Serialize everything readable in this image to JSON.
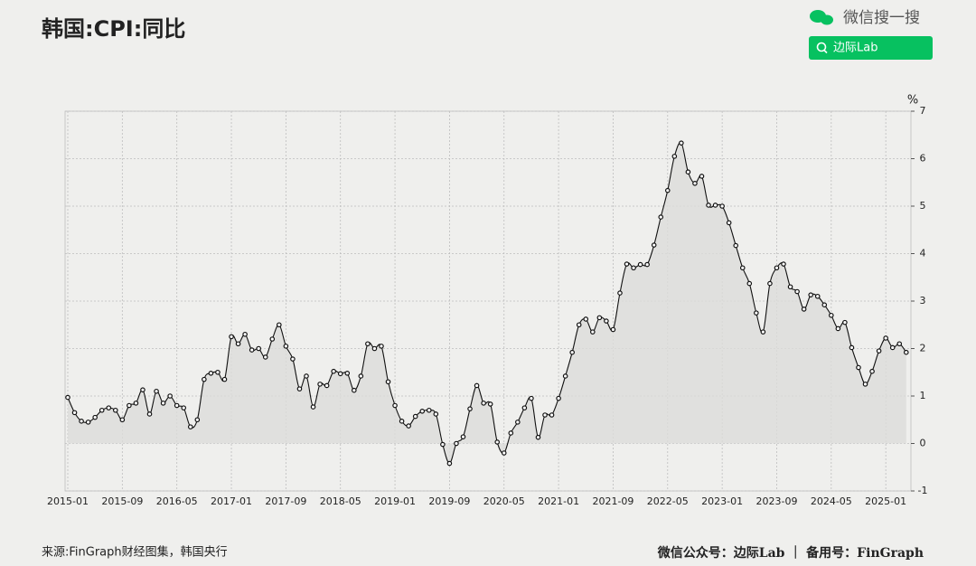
{
  "chart_data": {
    "type": "line",
    "title": "韩国:CPI:同比",
    "categories": [
      "2015-01",
      null,
      null,
      null,
      null,
      null,
      null,
      null,
      "2015-09",
      null,
      null,
      null,
      null,
      null,
      null,
      null,
      "2016-05",
      null,
      null,
      null,
      null,
      null,
      null,
      null,
      "2017-01",
      null,
      null,
      null,
      null,
      null,
      null,
      null,
      "2017-09",
      null,
      null,
      null,
      null,
      null,
      null,
      null,
      "2018-05",
      null,
      null,
      null,
      null,
      null,
      null,
      null,
      "2019-01",
      null,
      null,
      null,
      null,
      null,
      null,
      null,
      "2019-09",
      null,
      null,
      null,
      null,
      null,
      null,
      null,
      "2020-05",
      null,
      null,
      null,
      null,
      null,
      null,
      null,
      "2021-01",
      null,
      null,
      null,
      null,
      null,
      null,
      null,
      "2021-09",
      null,
      null,
      null,
      null,
      null,
      null,
      null,
      "2022-05",
      null,
      null,
      null,
      null,
      null,
      null,
      null,
      "2023-01",
      null,
      null,
      null,
      null,
      null,
      null,
      null,
      "2023-09",
      null,
      null,
      null,
      null,
      null,
      null,
      null,
      "2024-05",
      null,
      null,
      null,
      null,
      null,
      null,
      null,
      "2025-01",
      null,
      null,
      null
    ],
    "values": [
      0.97,
      0.65,
      0.47,
      0.45,
      0.55,
      0.7,
      0.75,
      0.7,
      0.5,
      0.8,
      0.85,
      1.13,
      0.62,
      1.1,
      0.85,
      1.0,
      0.8,
      0.75,
      0.35,
      0.5,
      1.35,
      1.48,
      1.5,
      1.35,
      2.25,
      2.1,
      2.3,
      1.97,
      2.0,
      1.82,
      2.2,
      2.5,
      2.05,
      1.78,
      1.15,
      1.42,
      0.77,
      1.25,
      1.22,
      1.52,
      1.47,
      1.48,
      1.12,
      1.42,
      2.1,
      2.0,
      2.05,
      1.3,
      0.8,
      0.47,
      0.37,
      0.57,
      0.68,
      0.7,
      0.62,
      -0.02,
      -0.42,
      0.0,
      0.14,
      0.73,
      1.22,
      0.85,
      0.83,
      0.03,
      -0.2,
      0.22,
      0.45,
      0.75,
      0.95,
      0.13,
      0.6,
      0.6,
      0.95,
      1.42,
      1.92,
      2.5,
      2.62,
      2.35,
      2.65,
      2.58,
      2.4,
      3.17,
      3.78,
      3.7,
      3.77,
      3.77,
      4.18,
      4.77,
      5.33,
      6.05,
      6.33,
      5.72,
      5.48,
      5.63,
      5.02,
      5.02,
      5.0,
      4.65,
      4.17,
      3.7,
      3.37,
      2.75,
      2.35,
      3.37,
      3.7,
      3.78,
      3.3,
      3.2,
      2.83,
      3.13,
      3.1,
      2.92,
      2.7,
      2.42,
      2.55,
      2.02,
      1.6,
      1.25,
      1.52,
      1.95,
      2.22,
      2.02,
      2.1,
      1.92
    ],
    "color": "#111111",
    "fill": "#dcdcda",
    "y_unit": "%",
    "ylim": [
      -1,
      7
    ],
    "yticks": [
      -1,
      0,
      1,
      2,
      3,
      4,
      5,
      6,
      7
    ],
    "grid": true
  },
  "header": {
    "search": "微信搜一搜",
    "button": "边际Lab"
  },
  "footer": {
    "source": "来源:FinGraph财经图集，韩国央行",
    "right": "微信公众号：边际Lab ｜ 备用号：FinGraph"
  }
}
